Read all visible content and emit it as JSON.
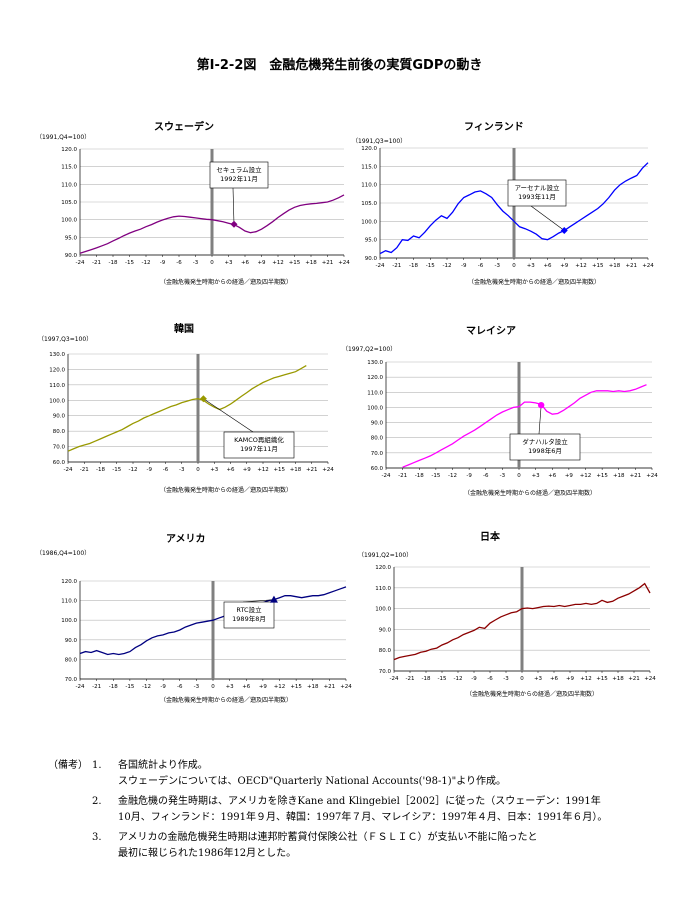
{
  "page_title": "第Ⅰ-2-2図　金融危機発生前後の実質GDPの動き",
  "xticks": [
    "-24",
    "-21",
    "-18",
    "-15",
    "-12",
    "-9",
    "-6",
    "-3",
    "0",
    "+3",
    "+6",
    "+9",
    "+12",
    "+15",
    "+18",
    "+21",
    "+24"
  ],
  "x_axis_caption": "（金融危機発生時期からの経過／遡及四半期数）",
  "chart_data": [
    {
      "id": "sweden",
      "type": "line",
      "title": "スウェーデン",
      "base_label": "（1991,Q4=100）",
      "color": "#800080",
      "ylim": [
        90,
        120
      ],
      "yticks": [
        "90.0",
        "95.0",
        "100.0",
        "105.0",
        "110.0",
        "115.0",
        "120.0"
      ],
      "marker": {
        "x": 4,
        "y": 98.7,
        "shape": "diamond",
        "label": [
          "セキュラム設立",
          "1992年11月"
        ]
      },
      "series": [
        {
          "x": [
            -24,
            -23,
            -22,
            -21,
            -20,
            -19,
            -18,
            -17,
            -16,
            -15,
            -14,
            -13,
            -12,
            -11,
            -10,
            -9,
            -8,
            -7,
            -6,
            -5,
            -4,
            -3,
            -2,
            -1,
            0,
            1,
            2,
            3,
            4,
            5,
            6,
            7,
            8,
            9,
            10,
            11,
            12,
            13,
            14,
            15,
            16,
            17,
            18,
            19,
            20,
            21,
            22,
            23,
            24
          ],
          "values": [
            90.5,
            91.0,
            91.5,
            92.0,
            92.6,
            93.2,
            94.0,
            94.7,
            95.5,
            96.2,
            96.8,
            97.3,
            98.0,
            98.6,
            99.3,
            99.9,
            100.4,
            100.8,
            101.0,
            100.9,
            100.7,
            100.5,
            100.3,
            100.1,
            100.0,
            99.7,
            99.4,
            99.0,
            98.6,
            97.8,
            96.8,
            96.3,
            96.6,
            97.3,
            98.3,
            99.4,
            100.6,
            101.7,
            102.7,
            103.5,
            104.0,
            104.3,
            104.5,
            104.6,
            104.8,
            105.0,
            105.5,
            106.2,
            107.0
          ]
        }
      ]
    },
    {
      "id": "finland",
      "type": "line",
      "title": "フィンランド",
      "base_label": "（1991,Q3=100）",
      "color": "#0000ff",
      "ylim": [
        90,
        120
      ],
      "yticks": [
        "90.0",
        "95.0",
        "100.0",
        "105.0",
        "110.0",
        "115.0",
        "120.0"
      ],
      "marker": {
        "x": 9,
        "y": 97.5,
        "shape": "diamond",
        "label": [
          "アーセナル設立",
          "1993年11月"
        ]
      },
      "series": [
        {
          "x": [
            -24,
            -23,
            -22,
            -21,
            -20,
            -19,
            -18,
            -17,
            -16,
            -15,
            -14,
            -13,
            -12,
            -11,
            -10,
            -9,
            -8,
            -7,
            -6,
            -5,
            -4,
            -3,
            -2,
            -1,
            0,
            1,
            2,
            3,
            4,
            5,
            6,
            7,
            8,
            9,
            10,
            11,
            12,
            13,
            14,
            15,
            16,
            17,
            18,
            19,
            20,
            21,
            22,
            23,
            24
          ],
          "values": [
            91.2,
            92.0,
            91.5,
            92.8,
            95.0,
            94.8,
            96.0,
            95.5,
            97.0,
            98.8,
            100.3,
            101.5,
            100.8,
            102.5,
            104.8,
            106.5,
            107.2,
            108.0,
            108.3,
            107.5,
            106.5,
            104.5,
            102.8,
            101.5,
            100.0,
            98.5,
            98.0,
            97.3,
            96.5,
            95.3,
            95.0,
            95.8,
            96.8,
            97.5,
            98.5,
            99.5,
            100.5,
            101.5,
            102.5,
            103.5,
            104.8,
            106.5,
            108.5,
            110.0,
            111.0,
            111.8,
            112.5,
            114.5,
            116.0
          ]
        }
      ]
    },
    {
      "id": "korea",
      "type": "line",
      "title": "韓国",
      "base_label": "（1997,Q3=100）",
      "color": "#999900",
      "ylim": [
        60,
        130
      ],
      "yticks": [
        "60.0",
        "70.0",
        "80.0",
        "90.0",
        "100.0",
        "110.0",
        "120.0",
        "130.0"
      ],
      "marker": {
        "x": 1,
        "y": 101,
        "shape": "diamond",
        "label": [
          "KAMCO再組織化",
          "1997年11月"
        ]
      },
      "series": [
        {
          "x": [
            -24,
            -23,
            -22,
            -21,
            -20,
            -19,
            -18,
            -17,
            -16,
            -15,
            -14,
            -13,
            -12,
            -11,
            -10,
            -9,
            -8,
            -7,
            -6,
            -5,
            -4,
            -3,
            -2,
            -1,
            0,
            1,
            2,
            3,
            4,
            5,
            6,
            7,
            8,
            9,
            10,
            11,
            12,
            13,
            14,
            15,
            16,
            17,
            18,
            19,
            20,
            21,
            22,
            23,
            24
          ],
          "values": [
            67.0,
            68.5,
            70.0,
            71.0,
            72.0,
            73.5,
            75.0,
            76.5,
            78.0,
            79.5,
            81.0,
            83.0,
            85.0,
            86.5,
            88.5,
            90.0,
            91.5,
            93.0,
            94.5,
            96.0,
            97.0,
            98.5,
            99.5,
            100.5,
            101.0,
            100.0,
            97.5,
            95.5,
            94.0,
            95.5,
            97.5,
            100.0,
            102.5,
            105.0,
            107.5,
            109.5,
            111.5,
            113.0,
            114.5,
            115.5,
            116.5,
            117.5,
            118.5,
            120.5,
            122.5,
            null,
            null,
            null,
            null
          ]
        }
      ]
    },
    {
      "id": "malaysia",
      "type": "line",
      "title": "マレイシア",
      "base_label": "（1997,Q2=100）",
      "color": "#ff00ff",
      "ylim": [
        60,
        130
      ],
      "yticks": [
        "60.0",
        "70.0",
        "80.0",
        "90.0",
        "100.0",
        "110.0",
        "120.0",
        "130.0"
      ],
      "marker": {
        "x": 4,
        "y": 101.5,
        "shape": "circle",
        "label": [
          "ダナハルタ設立",
          "1998年6月"
        ]
      },
      "series": [
        {
          "x": [
            -24,
            -23,
            -22,
            -21,
            -20,
            -19,
            -18,
            -17,
            -16,
            -15,
            -14,
            -13,
            -12,
            -11,
            -10,
            -9,
            -8,
            -7,
            -6,
            -5,
            -4,
            -3,
            -2,
            -1,
            0,
            1,
            2,
            3,
            4,
            5,
            6,
            7,
            8,
            9,
            10,
            11,
            12,
            13,
            14,
            15,
            16,
            17,
            18,
            19,
            20,
            21,
            22,
            23,
            24
          ],
          "values": [
            null,
            null,
            null,
            60.5,
            62.0,
            63.5,
            65.0,
            66.5,
            68.0,
            70.0,
            72.0,
            74.0,
            76.0,
            78.5,
            81.0,
            83.0,
            85.0,
            87.5,
            90.0,
            92.5,
            95.0,
            97.0,
            98.5,
            100.0,
            100.5,
            103.5,
            103.5,
            103.0,
            102.0,
            97.5,
            95.5,
            96.0,
            98.0,
            100.5,
            103.0,
            106.0,
            108.0,
            110.0,
            111.0,
            111.0,
            111.0,
            110.5,
            111.0,
            110.5,
            111.0,
            112.0,
            113.5,
            115.0,
            null
          ]
        }
      ]
    },
    {
      "id": "usa",
      "type": "line",
      "title": "アメリカ",
      "base_label": "（1986,Q4=100）",
      "color": "#000080",
      "ylim": [
        70,
        120
      ],
      "yticks": [
        "70.0",
        "80.0",
        "90.0",
        "100.0",
        "110.0",
        "120.0"
      ],
      "marker": {
        "x": 11,
        "y": 110.5,
        "shape": "triangle",
        "label": [
          "RTC設立",
          "1989年8月"
        ]
      },
      "series": [
        {
          "x": [
            -24,
            -23,
            -22,
            -21,
            -20,
            -19,
            -18,
            -17,
            -16,
            -15,
            -14,
            -13,
            -12,
            -11,
            -10,
            -9,
            -8,
            -7,
            -6,
            -5,
            -4,
            -3,
            -2,
            -1,
            0,
            1,
            2,
            3,
            4,
            5,
            6,
            7,
            8,
            9,
            10,
            11,
            12,
            13,
            14,
            15,
            16,
            17,
            18,
            19,
            20,
            21,
            22,
            23,
            24
          ],
          "values": [
            83.0,
            84.0,
            83.5,
            84.5,
            83.5,
            82.5,
            83.0,
            82.5,
            83.0,
            84.0,
            86.0,
            87.5,
            89.5,
            91.0,
            92.0,
            92.5,
            93.5,
            94.0,
            95.0,
            96.5,
            97.5,
            98.5,
            99.0,
            99.5,
            100.0,
            101.0,
            102.0,
            103.0,
            104.5,
            105.5,
            106.5,
            107.5,
            108.5,
            109.0,
            110.0,
            110.5,
            111.5,
            112.5,
            112.5,
            112.0,
            111.5,
            112.0,
            112.5,
            112.5,
            113.0,
            114.0,
            115.0,
            116.0,
            117.0
          ]
        }
      ]
    },
    {
      "id": "japan",
      "type": "line",
      "title": "日本",
      "base_label": "（1991,Q2=100）",
      "color": "#8b0000",
      "ylim": [
        70,
        120
      ],
      "yticks": [
        "70.0",
        "80.0",
        "90.0",
        "100.0",
        "110.0",
        "120.0"
      ],
      "marker": null,
      "series": [
        {
          "x": [
            -24,
            -23,
            -22,
            -21,
            -20,
            -19,
            -18,
            -17,
            -16,
            -15,
            -14,
            -13,
            -12,
            -11,
            -10,
            -9,
            -8,
            -7,
            -6,
            -5,
            -4,
            -3,
            -2,
            -1,
            0,
            1,
            2,
            3,
            4,
            5,
            6,
            7,
            8,
            9,
            10,
            11,
            12,
            13,
            14,
            15,
            16,
            17,
            18,
            19,
            20,
            21,
            22,
            23,
            24
          ],
          "values": [
            75.5,
            76.5,
            77.0,
            77.5,
            78.0,
            79.0,
            79.5,
            80.5,
            81.0,
            82.5,
            83.5,
            85.0,
            86.0,
            87.5,
            88.5,
            89.5,
            91.0,
            90.5,
            93.0,
            94.5,
            96.0,
            97.0,
            98.0,
            98.5,
            100.0,
            100.3,
            100.0,
            100.5,
            101.0,
            101.2,
            101.0,
            101.5,
            101.0,
            101.5,
            102.0,
            102.0,
            102.5,
            102.0,
            102.5,
            104.0,
            103.0,
            103.5,
            105.0,
            106.0,
            107.0,
            108.5,
            110.0,
            112.0,
            107.5
          ]
        }
      ]
    }
  ],
  "notes": {
    "label": "（備考）",
    "items": [
      {
        "num": "1.",
        "lines": [
          "各国統計より作成。",
          "スウェーデンについては、OECD\"Quarterly National Accounts('98-1)\"より作成。"
        ]
      },
      {
        "num": "2.",
        "lines": [
          "金融危機の発生時期は、アメリカを除きKane and Klingebiel［2002］に従った（スウェーデン：1991年",
          "10月、フィンランド：1991年９月、韓国：1997年７月、マレイシア：1997年４月、日本：1991年６月）。"
        ]
      },
      {
        "num": "3.",
        "lines": [
          "アメリカの金融危機発生時期は連邦貯蓄貸付保険公社（ＦＳＬＩＣ）が支払い不能に陥ったと",
          "最初に報じられた1986年12月とした。"
        ]
      }
    ]
  }
}
